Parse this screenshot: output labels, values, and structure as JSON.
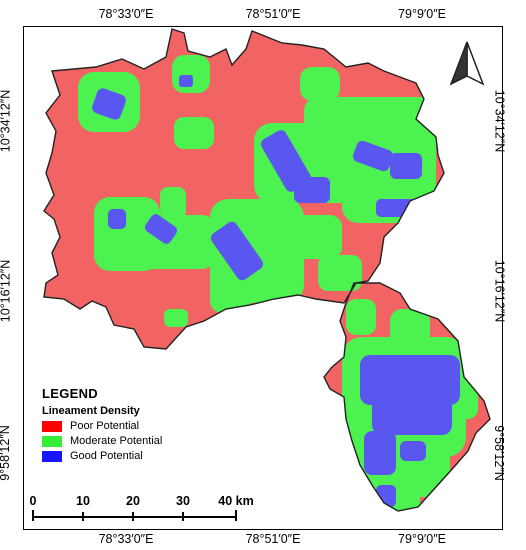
{
  "map": {
    "coordinate_labels": {
      "top": [
        "78°33′0″E",
        "78°51′0″E",
        "79°9′0″E"
      ],
      "bottom": [
        "78°33′0″E",
        "78°51′0″E",
        "79°9′0″E"
      ],
      "left": [
        "10°34′12″N",
        "10°16′12″N",
        "9°58′12″N"
      ],
      "right": [
        "10°34′12″N",
        "10°16′12″N",
        "9°58′12″N"
      ]
    },
    "colors": {
      "poor": "#f26464",
      "moderate": "#4cf250",
      "good": "#5a56f0",
      "outline": "#222222"
    },
    "north_arrow": "north-arrow-icon"
  },
  "legend": {
    "title": "LEGEND",
    "subtitle": "Lineament Density",
    "items": [
      {
        "label": "Poor Potential",
        "color": "#ff0000"
      },
      {
        "label": "Moderate Potential",
        "color": "#33ee33"
      },
      {
        "label": "Good Potential",
        "color": "#1515ff"
      }
    ]
  },
  "scale_bar": {
    "labels": [
      "0",
      "10",
      "20",
      "30",
      "40 km"
    ]
  }
}
